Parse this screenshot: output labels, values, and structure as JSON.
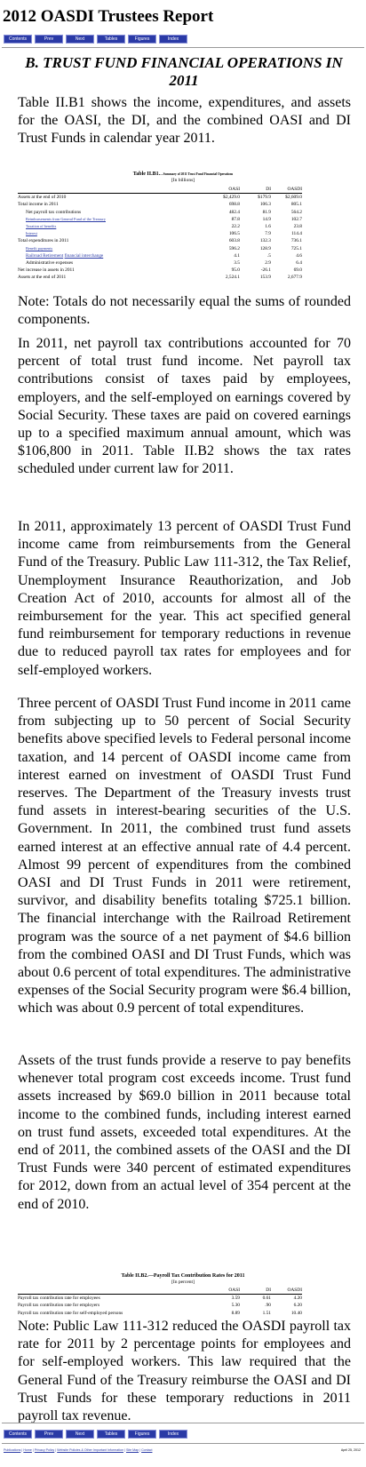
{
  "report_title": "2012 OASDI Trustees Report",
  "nav": [
    "Contents",
    "Prev",
    "Next",
    "Tables",
    "Figures",
    "Index"
  ],
  "section_heading": "B. TRUST FUND FINANCIAL OPERATIONS IN 2011",
  "paragraphs": {
    "p1": "Table II.B1 shows the income, expenditures, and assets for the OASI, the DI, and the combined OASI and DI Trust Funds in calendar year 2011.",
    "p2": "Note: Totals do not necessarily equal the sums of rounded components.",
    "p3": "In 2011, net payroll tax contributions accounted for 70 percent of total trust fund income. Net payroll tax contributions consist of taxes paid by employees, employers, and the self-employed on earnings covered by Social Security. These taxes are paid on covered earnings up to a specified maximum annual amount, which was $106,800 in 2011. Table II.B2 shows the tax rates scheduled under current law for 2011.",
    "p4": "In 2011, approximately 13 percent of OASDI Trust Fund income came from reimbursements from the General Fund of the Treasury. Public Law 111-312, the Tax Relief, Unemployment Insurance Reauthorization, and Job Creation Act of 2010, accounts for almost all of the reimbursement for the year. This act specified general fund reimbursement for temporary reductions in revenue due to reduced payroll tax rates for employees and for self-employed workers.",
    "p5": "Three percent of OASDI Trust Fund income in 2011 came from subjecting up to 50 percent of Social Security benefits above specified levels to Federal personal income taxation, and 14 percent of OASDI income came from interest earned on investment of OASDI Trust Fund reserves. The Department of the Treasury invests trust fund assets in interest-bearing securities of the U.S. Government. In 2011, the combined trust fund assets earned interest at an effective annual rate of 4.4 percent. Almost 99 percent of expenditures from the combined OASI and DI Trust Funds in 2011 were retirement, survivor, and disability benefits totaling $725.1 billion. The financial interchange with the Railroad Retirement program was the source of a net payment of $4.6 billion from the combined OASI and DI Trust Funds, which was about 0.6 percent of total expenditures. The administrative expenses of the Social Security program were $6.4 billion, which was about 0.9 percent of total expenditures.",
    "p6": "Assets of the trust funds provide a reserve to pay benefits whenever total program cost exceeds income. Trust fund assets increased by $69.0 billion in 2011 because total income to the combined funds, including interest earned on trust fund assets, exceeded total expenditures. At the end of 2011, the combined assets of the OASI and the DI Trust Funds were 340 percent of estimated expenditures for 2012, down from an actual level of 354 percent at the end of 2010.",
    "p7": "Note: Public Law 111-312 reduced the OASDI payroll tax rate for 2011 by 2 percentage points for employees and for self-employed workers. This law required that the General Fund of the Treasury reimburse the OASI and DI Trust Funds for these temporary reductions in 2011 payroll tax revenue."
  },
  "table1": {
    "caption": "Table II.B1.",
    "caption_sub": "—Summary of 2011 Trust Fund Financial Operations",
    "units": "[In billions]",
    "columns": [
      "",
      "OASI",
      "DI",
      "OASDI"
    ],
    "rows": [
      {
        "label": "Assets at the end of 2010",
        "oasi": "$2,429.0",
        "di": "$179.9",
        "oasdi": "$2,609.0"
      },
      {
        "label": "Total income in 2011",
        "oasi": "698.8",
        "di": "106.3",
        "oasdi": "805.1"
      },
      {
        "label": "Net payroll tax contributions",
        "oasi": "482.4",
        "di": "81.9",
        "oasdi": "564.2"
      },
      {
        "label": "Reimbursements from General Fund of the Treasury",
        "oasi": "87.8",
        "di": "14.9",
        "oasdi": "102.7"
      },
      {
        "label": "Taxation of benefits",
        "oasi": "22.2",
        "di": "1.6",
        "oasdi": "23.8"
      },
      {
        "label": "Interest",
        "oasi": "106.5",
        "di": "7.9",
        "oasdi": "114.4"
      },
      {
        "label": "Total expenditures in 2011",
        "oasi": "603.8",
        "di": "132.3",
        "oasdi": "736.1"
      },
      {
        "label": "Benefit payments",
        "oasi": "596.2",
        "di": "128.9",
        "oasdi": "725.1"
      },
      {
        "label_a": "Railroad Retirement",
        "label_b": "financial interchange",
        "oasi": "4.1",
        "di": ".5",
        "oasdi": "4.6"
      },
      {
        "label": "Administrative expenses",
        "oasi": "3.5",
        "di": "2.9",
        "oasdi": "6.4"
      },
      {
        "label": "Net increase in assets in 2011",
        "oasi": "95.0",
        "di": "-26.1",
        "oasdi": "69.0"
      },
      {
        "label": "Assets at the end of 2011",
        "oasi": "2,524.1",
        "di": "153.9",
        "oasdi": "2,677.9"
      }
    ]
  },
  "table2": {
    "caption": "Table II.B2.—Payroll Tax Contribution Rates for 2011",
    "units": "[In percent]",
    "columns": [
      "",
      "OASI",
      "DI",
      "OASDI"
    ],
    "rows": [
      {
        "label": "Payroll tax contribution rate for employees",
        "oasi": "3.59",
        "di": "0.61",
        "oasdi": "4.20"
      },
      {
        "label": "Payroll tax contribution rate for employers",
        "oasi": "5.30",
        "di": ".90",
        "oasdi": "6.20"
      },
      {
        "label": "Payroll tax contribution rate for self-employed persons",
        "oasi": "8.89",
        "di": "1.51",
        "oasdi": "10.40"
      }
    ]
  },
  "footer": {
    "links": [
      "Publications",
      "Home",
      "Privacy Policy",
      "Website Policies & Other Important Information",
      "Site Map",
      "Contact"
    ],
    "date": "April 25, 2012"
  }
}
